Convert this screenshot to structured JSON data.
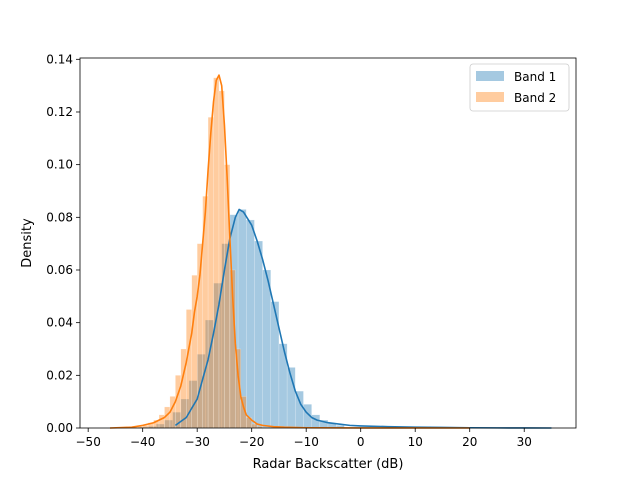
{
  "chart_data": {
    "type": "area",
    "title": "",
    "xlabel": "Radar Backscatter (dB)",
    "ylabel": "Density",
    "xlim": [
      -51.5,
      39.5
    ],
    "ylim": [
      0,
      0.1405
    ],
    "xticks": [
      -50,
      -40,
      -30,
      -20,
      -10,
      0,
      10,
      20,
      30
    ],
    "xtick_labels": [
      "−50",
      "−40",
      "−30",
      "−20",
      "−10",
      "0",
      "10",
      "20",
      "30"
    ],
    "yticks": [
      0,
      0.02,
      0.04,
      0.06,
      0.08,
      0.1,
      0.12,
      0.14
    ],
    "ytick_labels": [
      "0.00",
      "0.02",
      "0.04",
      "0.06",
      "0.08",
      "0.10",
      "0.12",
      "0.14"
    ],
    "grid": false,
    "legend_position": "upper right",
    "series": [
      {
        "name": "Band 1",
        "color": "#1f77b4",
        "hist_alpha": 0.4,
        "bin_edges": [
          -40.5,
          -39.0,
          -37.5,
          -36.0,
          -34.5,
          -33.0,
          -31.5,
          -30.0,
          -28.5,
          -27.0,
          -25.5,
          -24.0,
          -22.5,
          -21.0,
          -19.5,
          -18.0,
          -16.5,
          -15.0,
          -13.5,
          -12.0,
          -10.5,
          -9.0,
          -7.5,
          -6.0,
          -4.5,
          -3.0
        ],
        "hist_values": [
          0.0003,
          0.0006,
          0.0015,
          0.003,
          0.006,
          0.011,
          0.018,
          0.028,
          0.041,
          0.055,
          0.07,
          0.081,
          0.083,
          0.079,
          0.071,
          0.06,
          0.048,
          0.032,
          0.023,
          0.014,
          0.009,
          0.005,
          0.003,
          0.0018,
          0.001
        ],
        "kde_x": [
          -34,
          -32,
          -30,
          -28,
          -27,
          -26,
          -25,
          -24,
          -23,
          -22.3,
          -21.5,
          -20,
          -19,
          -18,
          -17,
          -16,
          -15,
          -14,
          -13,
          -12,
          -11,
          -10,
          -9,
          -8,
          -6,
          -4,
          -2,
          0,
          5,
          10,
          15,
          20,
          25,
          30,
          35
        ],
        "kde_y": [
          0.001,
          0.004,
          0.011,
          0.026,
          0.036,
          0.047,
          0.06,
          0.072,
          0.08,
          0.083,
          0.082,
          0.077,
          0.071,
          0.064,
          0.056,
          0.047,
          0.038,
          0.029,
          0.021,
          0.014,
          0.009,
          0.006,
          0.004,
          0.003,
          0.002,
          0.0015,
          0.001,
          0.0008,
          0.0005,
          0.0003,
          0.0002,
          0.0001,
          5e-05,
          2e-05,
          0
        ]
      },
      {
        "name": "Band 2",
        "color": "#ff7f0e",
        "hist_alpha": 0.4,
        "bin_edges": [
          -46.0,
          -45.0,
          -44.0,
          -43.0,
          -42.0,
          -41.0,
          -40.0,
          -39.0,
          -38.0,
          -37.0,
          -36.0,
          -35.0,
          -34.0,
          -33.0,
          -32.0,
          -31.0,
          -30.0,
          -29.0,
          -28.0,
          -27.0,
          -26.0,
          -25.0,
          -24.0,
          -23.0,
          -22.0,
          -21.0,
          -20.0,
          -19.0,
          -18.0,
          -17.0
        ],
        "hist_values": [
          0.0001,
          0.0001,
          0.0002,
          0.0003,
          0.0004,
          0.0006,
          0.001,
          0.002,
          0.003,
          0.005,
          0.008,
          0.012,
          0.02,
          0.03,
          0.045,
          0.058,
          0.07,
          0.088,
          0.118,
          0.133,
          0.128,
          0.1,
          0.06,
          0.03,
          0.012,
          0.004,
          0.0015,
          0.0006,
          0.0002
        ],
        "kde_x": [
          -46,
          -42,
          -40,
          -38,
          -36,
          -35,
          -34,
          -33,
          -32,
          -31,
          -30.5,
          -30,
          -29.5,
          -29,
          -28.5,
          -28,
          -27.5,
          -27,
          -26.5,
          -26,
          -25.5,
          -25,
          -24.5,
          -24,
          -23.5,
          -23,
          -22.5,
          -22,
          -21.5,
          -21,
          -20,
          -19,
          -18,
          -16,
          -14,
          -10,
          0,
          10,
          20
        ],
        "kde_y": [
          0,
          0.0003,
          0.001,
          0.002,
          0.004,
          0.006,
          0.01,
          0.016,
          0.025,
          0.036,
          0.044,
          0.05,
          0.058,
          0.07,
          0.082,
          0.098,
          0.112,
          0.124,
          0.132,
          0.134,
          0.13,
          0.115,
          0.095,
          0.072,
          0.05,
          0.032,
          0.02,
          0.012,
          0.008,
          0.005,
          0.003,
          0.0015,
          0.001,
          0.0005,
          0.0003,
          0.0001,
          2e-05,
          1e-05,
          0
        ]
      }
    ]
  }
}
